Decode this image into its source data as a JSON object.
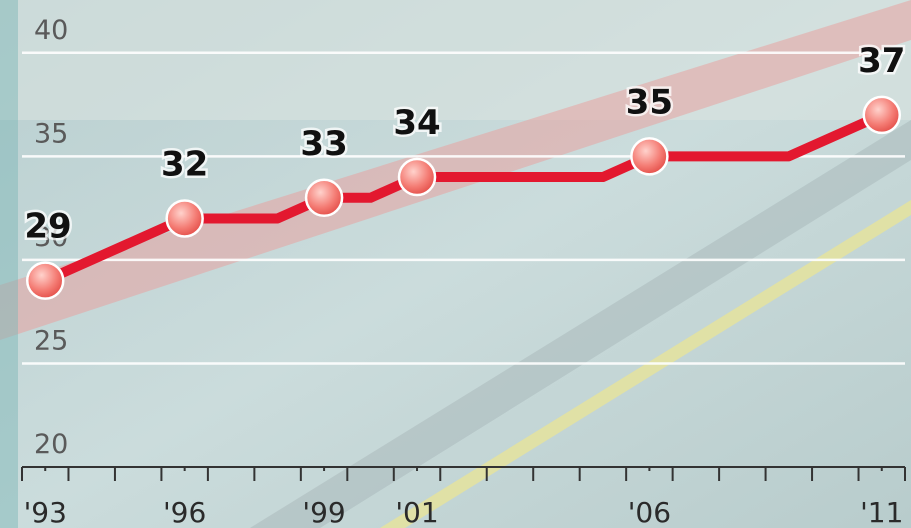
{
  "chart_data": {
    "type": "line",
    "series": [
      {
        "color": "#e3182f",
        "x": [
          1993,
          1996,
          1998,
          1999,
          2000,
          2001,
          2005,
          2006,
          2009,
          2011
        ],
        "values": [
          29,
          32,
          32,
          33,
          33,
          34,
          34,
          35,
          35,
          37
        ]
      },
      {
        "color": "#f26a6a",
        "markers": true,
        "x": [
          1993,
          1996,
          1999,
          2001,
          2006,
          2011
        ],
        "values": [
          29,
          32,
          33,
          34,
          35,
          37
        ]
      }
    ],
    "xlim": [
      1992.5,
      2011.5
    ],
    "xticks": [
      {
        "value": 1993,
        "label": "'93"
      },
      {
        "value": 1996,
        "label": "'96"
      },
      {
        "value": 1999,
        "label": "'99"
      },
      {
        "value": 2001,
        "label": "'01"
      },
      {
        "value": 2006,
        "label": "'06"
      },
      {
        "value": 2011,
        "label": "'11"
      }
    ],
    "ylim": [
      20,
      42.5
    ],
    "yticks": [
      20,
      25,
      30,
      35,
      40
    ],
    "grid": true
  }
}
